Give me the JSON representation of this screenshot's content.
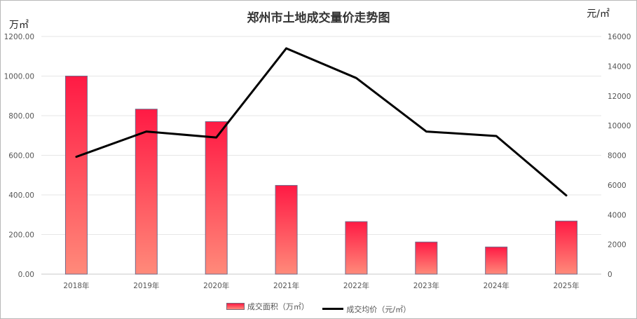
{
  "chart_data": {
    "type": "bar",
    "title": "郑州市土地成交量价走势图",
    "categories": [
      "2018年",
      "2019年",
      "2020年",
      "2021年",
      "2022年",
      "2023年",
      "2024年",
      "2025年"
    ],
    "series": [
      {
        "name": "成交面积（万㎡）",
        "type": "bar",
        "axis": "left",
        "values": [
          1000,
          833,
          770,
          448,
          265,
          162,
          137,
          268
        ]
      },
      {
        "name": "成交均价（元/㎡）",
        "type": "line",
        "axis": "right",
        "values": [
          7900,
          9600,
          9200,
          15200,
          13200,
          9600,
          9300,
          5300
        ]
      }
    ],
    "ylabel": "万㎡",
    "y2label": "元/㎡",
    "ylim": [
      0,
      1200
    ],
    "y2lim": [
      0,
      16000
    ],
    "yticks": [
      "0.00",
      "200.00",
      "400.00",
      "600.00",
      "800.00",
      "1000.00",
      "1200.00"
    ],
    "y2ticks": [
      "0",
      "2000",
      "4000",
      "6000",
      "8000",
      "10000",
      "12000",
      "14000",
      "16000"
    ],
    "grid": true,
    "legend": "bottom",
    "colors": {
      "bar_top": "#ff1a44",
      "bar_bottom": "#ff8a7a",
      "bar_border": "#6f6a8a",
      "line": "#000000",
      "grid": "#e6e6e6"
    }
  }
}
